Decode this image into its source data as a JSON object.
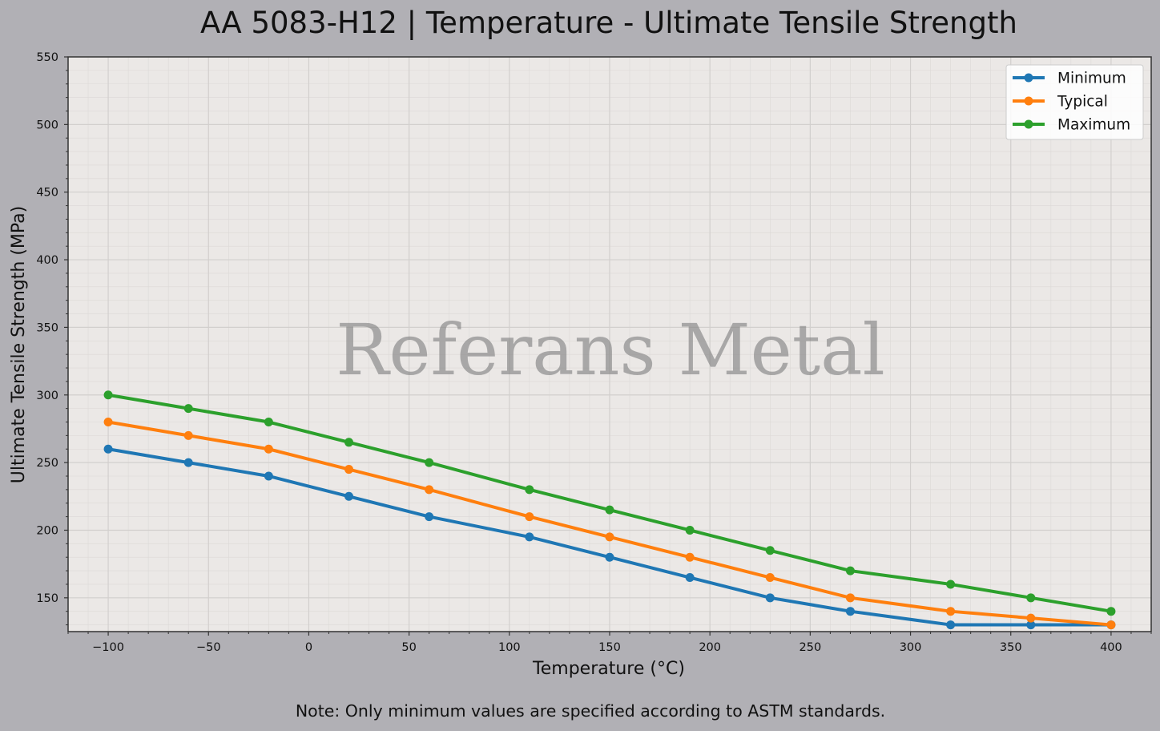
{
  "chart_data": {
    "type": "line",
    "title": "AA 5083-H12 | Temperature - Ultimate Tensile Strength",
    "xlabel": "Temperature (°C)",
    "ylabel": "Ultimate Tensile Strength (MPa)",
    "x": [
      -100,
      -60,
      -20,
      20,
      60,
      110,
      150,
      190,
      230,
      270,
      320,
      360,
      400
    ],
    "series": [
      {
        "name": "Minimum",
        "color": "#1f77b4",
        "values": [
          260,
          250,
          240,
          225,
          210,
          195,
          180,
          165,
          150,
          140,
          130,
          130,
          130
        ]
      },
      {
        "name": "Typical",
        "color": "#ff7f0e",
        "values": [
          280,
          270,
          260,
          245,
          230,
          210,
          195,
          180,
          165,
          150,
          140,
          135,
          130
        ]
      },
      {
        "name": "Maximum",
        "color": "#2ca02c",
        "values": [
          300,
          290,
          280,
          265,
          250,
          230,
          215,
          200,
          185,
          170,
          160,
          150,
          140
        ]
      }
    ],
    "xlim": [
      -120,
      420
    ],
    "ylim": [
      125,
      550
    ],
    "xticks": [
      -100,
      -50,
      0,
      50,
      100,
      150,
      200,
      250,
      300,
      350,
      400
    ],
    "xtick_labels": [
      "−100",
      "−50",
      "0",
      "50",
      "100",
      "150",
      "200",
      "250",
      "300",
      "350",
      "400"
    ],
    "yticks": [
      150,
      200,
      250,
      300,
      350,
      400,
      450,
      500,
      550
    ],
    "grid": true,
    "legend_position": "top-right",
    "note": "Note: Only minimum values are specified according to ASTM standards.",
    "watermark": "Referans Metal"
  }
}
